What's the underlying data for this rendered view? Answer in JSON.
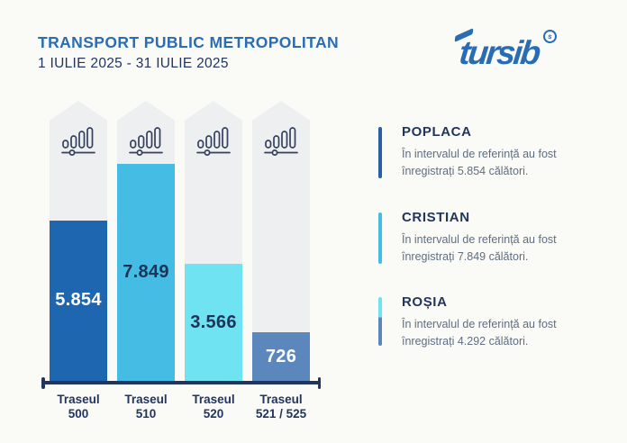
{
  "header": {
    "title": "TRANSPORT PUBLIC METROPOLITAN",
    "subtitle": "1 IULIE 2025 - 31 IULIE 2025",
    "logo_text": "tursib",
    "logo_coin_letter": "s"
  },
  "colors": {
    "background": "#fafaf7",
    "title_blue": "#2a6db5",
    "navy": "#22355c",
    "body_text": "#5f6e82",
    "track_gray": "#edeff1",
    "logo_blue": "#2a6cb4",
    "accent_poplaca": "#2760a8",
    "accent_cristian": "#45bce3",
    "accent_rosia_top": "#6fe3f2",
    "accent_rosia_bottom": "#5b87bd"
  },
  "chart_data": {
    "type": "bar",
    "title": "TRANSPORT PUBLIC METROPOLITAN — 1 IULIE 2025 - 31 IULIE 2025",
    "categories": [
      "Traseul 500",
      "Traseul 510",
      "Traseul 520",
      "Traseul 521 / 525"
    ],
    "categories_lines": [
      [
        "Traseul",
        "500"
      ],
      [
        "Traseul",
        "510"
      ],
      [
        "Traseul",
        "520"
      ],
      [
        "Traseul",
        "521 / 525"
      ]
    ],
    "values": [
      5854,
      7849,
      3566,
      726
    ],
    "value_labels": [
      "5.854",
      "7.849",
      "3.566",
      "726"
    ],
    "bar_colors": [
      "#1e66b0",
      "#45bce3",
      "#6fe3f2",
      "#5b87bd"
    ],
    "value_label_colors": [
      "#ffffff",
      "#1d3357",
      "#1d3357",
      "#ffffff"
    ],
    "bar_height_pct": [
      57.4,
      77.6,
      41.7,
      17.3
    ],
    "xlabel": "",
    "ylabel": "",
    "ylim": [
      0,
      10000
    ],
    "grid": false,
    "legend_position": "right"
  },
  "legend": {
    "items": [
      {
        "title": "POPLACA",
        "text": "În intervalul de referință au fost înregistrați 5.854 călători.",
        "accent_colors": [
          "#2760a8"
        ]
      },
      {
        "title": "CRISTIAN",
        "text": "În intervalul de referință au fost înregistrați 7.849 călători.",
        "accent_colors": [
          "#45bce3"
        ]
      },
      {
        "title": "ROȘIA",
        "text": "În intervalul de referință au fost înregistrați 4.292 călători.",
        "accent_colors": [
          "#6fe3f2",
          "#5b87bd"
        ]
      }
    ]
  }
}
